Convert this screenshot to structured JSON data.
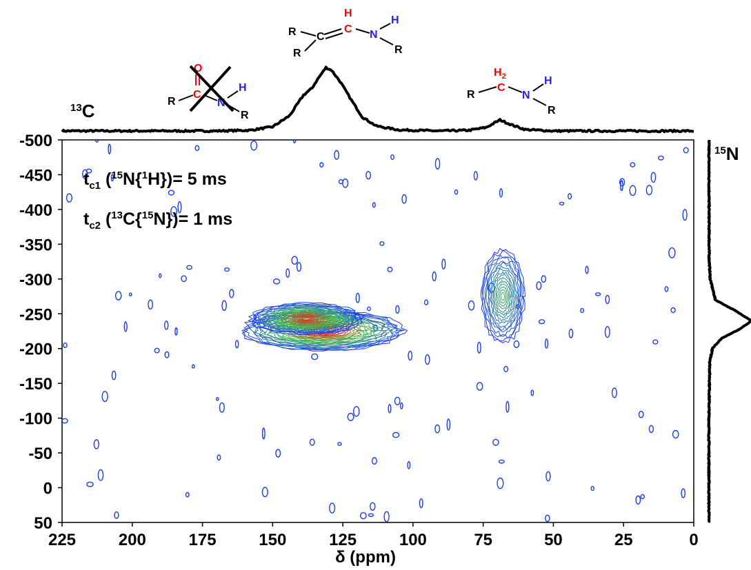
{
  "chart_data": {
    "type": "heatmap",
    "title": "",
    "xlabel": "δ (ppm)",
    "ylabel": "",
    "xlim": [
      225,
      0
    ],
    "ylim": [
      -500,
      50
    ],
    "x_ticks": [
      "225",
      "200",
      "175",
      "150",
      "125",
      "100",
      "75",
      "50",
      "25",
      "0"
    ],
    "x_tick_values": [
      225,
      200,
      175,
      150,
      125,
      100,
      75,
      50,
      25,
      0
    ],
    "y_ticks": [
      "-500",
      "-450",
      "-400",
      "-350",
      "-300",
      "-250",
      "-200",
      "-150",
      "-100",
      "-50",
      "0",
      "50"
    ],
    "y_tick_values": [
      -500,
      -450,
      -400,
      -350,
      -300,
      -250,
      -200,
      -150,
      -100,
      -50,
      0,
      50
    ],
    "annotations": {
      "tc1_main": "t",
      "tc1_sub": "c1",
      "tc1_a": " (",
      "tc1_sup1": "15",
      "tc1_b": "N{",
      "tc1_sup2": "1",
      "tc1_c": "H})= 5 ms",
      "tc2_main": "t",
      "tc2_sub": "c2",
      "tc2_a": " (",
      "tc2_sup1": "13",
      "tc2_b": "C{",
      "tc2_sup2": "15",
      "tc2_c": "N})= 1 ms"
    },
    "projection_labels": {
      "c13_sup": "13",
      "c13_el": "C",
      "n15_sup": "15",
      "n15_el": "N"
    },
    "contour_peaks": [
      {
        "x": 132,
        "y": -226,
        "intensity": 1.0,
        "sx": 13,
        "sy": 18
      },
      {
        "x": 138,
        "y": -243,
        "intensity": 0.9,
        "sx": 9,
        "sy": 14
      },
      {
        "x": 68,
        "y": -275,
        "intensity": 0.45,
        "sx": 3.5,
        "sy": 42
      }
    ],
    "projection_13C": [
      {
        "x": 225,
        "y": 0.0
      },
      {
        "x": 170,
        "y": 0.0
      },
      {
        "x": 158,
        "y": 0.01
      },
      {
        "x": 150,
        "y": 0.06
      },
      {
        "x": 144,
        "y": 0.22
      },
      {
        "x": 139,
        "y": 0.52
      },
      {
        "x": 136,
        "y": 0.62
      },
      {
        "x": 134,
        "y": 0.75
      },
      {
        "x": 131,
        "y": 0.92
      },
      {
        "x": 129,
        "y": 0.88
      },
      {
        "x": 126,
        "y": 0.72
      },
      {
        "x": 122,
        "y": 0.45
      },
      {
        "x": 118,
        "y": 0.2
      },
      {
        "x": 113,
        "y": 0.07
      },
      {
        "x": 105,
        "y": 0.015
      },
      {
        "x": 90,
        "y": 0.0
      },
      {
        "x": 80,
        "y": 0.01
      },
      {
        "x": 74,
        "y": 0.05
      },
      {
        "x": 69,
        "y": 0.16
      },
      {
        "x": 65,
        "y": 0.09
      },
      {
        "x": 60,
        "y": 0.02
      },
      {
        "x": 50,
        "y": 0.0
      },
      {
        "x": 0,
        "y": 0.0
      }
    ],
    "projection_15N": [
      {
        "y": -500,
        "v": 0.0
      },
      {
        "y": -330,
        "v": 0.005
      },
      {
        "y": -300,
        "v": 0.03
      },
      {
        "y": -270,
        "v": 0.15
      },
      {
        "y": -255,
        "v": 0.6
      },
      {
        "y": -240,
        "v": 1.0
      },
      {
        "y": -228,
        "v": 0.72
      },
      {
        "y": -215,
        "v": 0.3
      },
      {
        "y": -200,
        "v": 0.08
      },
      {
        "y": -180,
        "v": 0.02
      },
      {
        "y": -100,
        "v": 0.0
      },
      {
        "y": 50,
        "v": 0.0
      }
    ],
    "molecules": {
      "enamine": {
        "r1": "R",
        "c1": "C",
        "c2": "C",
        "h1": "H",
        "n": "N",
        "h2": "H",
        "r2": "R",
        "r3": "R"
      },
      "amine": {
        "r1": "R",
        "c": "C",
        "h2": "H",
        "h2_sub": "2",
        "n": "N",
        "h": "H",
        "r2": "R"
      },
      "amide": {
        "r1": "R",
        "c": "C",
        "o": "O",
        "n": "N",
        "h": "H",
        "r2": "R"
      }
    },
    "colors": {
      "contour_low": "#1a3cff",
      "contour_mid": "#3cbf4a",
      "contour_high": "#ff1a1a",
      "carbon_highlight": "#ff0000",
      "nitrogen_highlight": "#1f1fff"
    }
  }
}
